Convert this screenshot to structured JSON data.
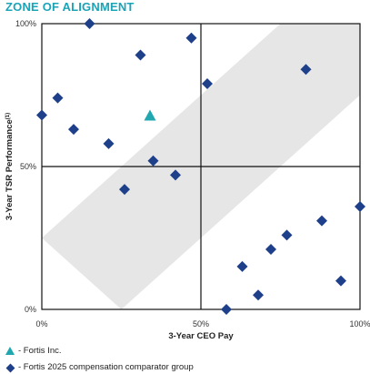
{
  "title": "ZONE OF ALIGNMENT",
  "chart_data": {
    "type": "scatter",
    "title": "ZONE OF ALIGNMENT",
    "xlabel": "3-Year CEO Pay",
    "ylabel": "3-Year TSR Performance",
    "ylabel_superscript": "(1)",
    "xlim": [
      0,
      100
    ],
    "ylim": [
      0,
      100
    ],
    "x_ticks": [
      "0%",
      "50%",
      "100%"
    ],
    "y_ticks": [
      "0%",
      "50%",
      "100%"
    ],
    "grid": false,
    "colors": {
      "fortis": "#20a7b0",
      "peers": "#1e3f8a",
      "band": "#e6e6e6"
    },
    "band": [
      [
        0,
        25
      ],
      [
        25,
        0
      ],
      [
        100,
        75
      ],
      [
        100,
        100
      ],
      [
        75,
        100
      ],
      [
        0,
        25
      ]
    ],
    "series": [
      {
        "name": "- Fortis Inc.",
        "marker": "triangle",
        "points": [
          [
            34,
            68
          ]
        ]
      },
      {
        "name": "- Fortis 2025 compensation comparator group",
        "marker": "diamond",
        "points": [
          [
            15,
            100
          ],
          [
            47,
            95
          ],
          [
            31,
            89
          ],
          [
            83,
            84
          ],
          [
            52,
            79
          ],
          [
            5,
            74
          ],
          [
            0,
            68
          ],
          [
            10,
            63
          ],
          [
            21,
            58
          ],
          [
            35,
            52
          ],
          [
            42,
            47
          ],
          [
            26,
            42
          ],
          [
            100,
            36
          ],
          [
            88,
            31
          ],
          [
            77,
            26
          ],
          [
            72,
            21
          ],
          [
            63,
            15
          ],
          [
            94,
            10
          ],
          [
            68,
            5
          ],
          [
            58,
            0
          ]
        ]
      }
    ]
  }
}
